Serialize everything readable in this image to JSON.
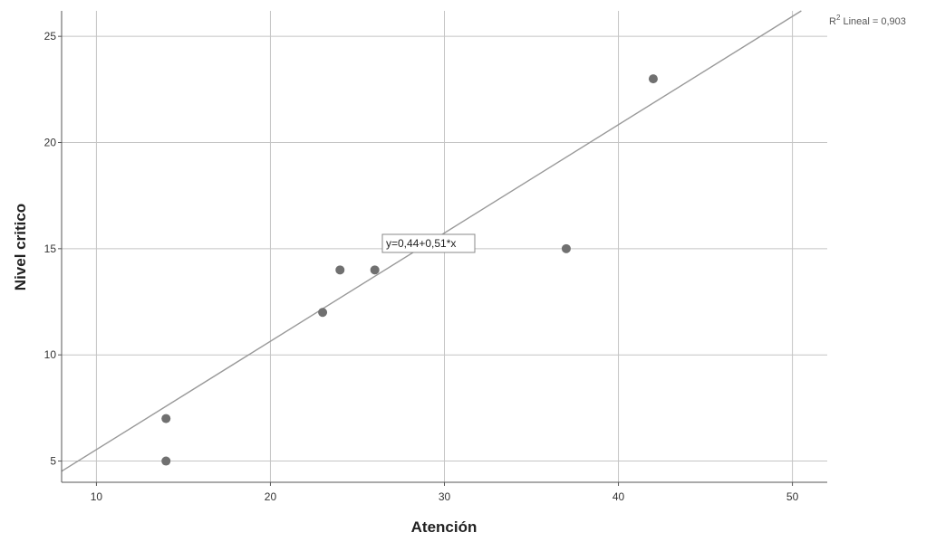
{
  "chart_data": {
    "type": "scatter",
    "xlabel": "Atención",
    "ylabel": "Nivel critico",
    "xlim": [
      8,
      52
    ],
    "ylim": [
      4,
      26.2
    ],
    "x_ticks": [
      10,
      20,
      30,
      40,
      50
    ],
    "y_ticks": [
      5,
      10,
      15,
      20,
      25
    ],
    "grid": true,
    "points": [
      {
        "x": 14,
        "y": 7
      },
      {
        "x": 14,
        "y": 5
      },
      {
        "x": 23,
        "y": 12
      },
      {
        "x": 24,
        "y": 14
      },
      {
        "x": 26,
        "y": 14
      },
      {
        "x": 37,
        "y": 15
      },
      {
        "x": 42,
        "y": 23
      }
    ],
    "fit_line": {
      "intercept": 0.44,
      "slope": 0.51,
      "equation_label": "y=0,44+0,51*x",
      "r2_prefix": "R",
      "r2_sup": "2",
      "r2_rest": " Lineal = 0,903"
    },
    "colors": {
      "point": "#707070",
      "line": "#999999",
      "grid": "#c4c4c4",
      "axis": "#555555"
    }
  }
}
